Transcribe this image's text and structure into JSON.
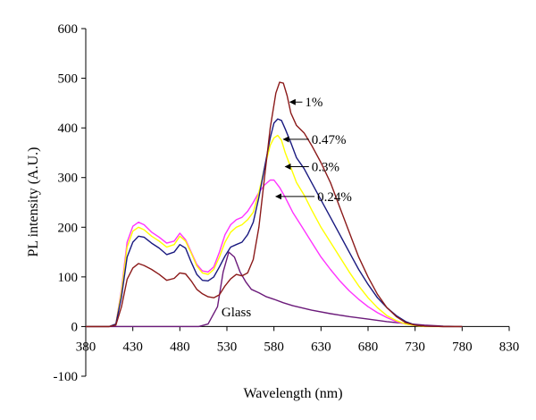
{
  "chart_data": {
    "type": "line",
    "title": "",
    "xlabel": "Wavelength (nm)",
    "ylabel": "PL intensity (A.U.)",
    "xlim": [
      380,
      830
    ],
    "ylim": [
      -100,
      600
    ],
    "xticks": [
      380,
      430,
      480,
      530,
      580,
      630,
      680,
      730,
      780,
      830
    ],
    "yticks": [
      -100,
      0,
      100,
      200,
      300,
      400,
      500,
      600
    ],
    "grid": false,
    "legend": "none",
    "series": [
      {
        "name": "1%",
        "color": "#8B1A1A",
        "x": [
          380,
          405,
          412,
          418,
          424,
          430,
          436,
          442,
          450,
          458,
          466,
          474,
          480,
          486,
          492,
          498,
          504,
          510,
          516,
          522,
          528,
          534,
          540,
          546,
          552,
          558,
          564,
          570,
          576,
          582,
          586,
          590,
          594,
          598,
          604,
          612,
          620,
          630,
          640,
          650,
          660,
          670,
          680,
          690,
          700,
          710,
          720,
          730,
          740,
          760,
          780
        ],
        "values": [
          0,
          0,
          3,
          40,
          95,
          118,
          127,
          123,
          115,
          105,
          93,
          97,
          108,
          106,
          92,
          75,
          66,
          60,
          58,
          64,
          82,
          96,
          105,
          102,
          108,
          135,
          200,
          300,
          400,
          470,
          492,
          490,
          465,
          430,
          405,
          390,
          365,
          330,
          290,
          240,
          190,
          140,
          100,
          65,
          38,
          20,
          8,
          3,
          1,
          0,
          0
        ]
      },
      {
        "name": "0.47%",
        "color": "#1A1A80",
        "x": [
          380,
          405,
          412,
          418,
          424,
          430,
          436,
          442,
          450,
          458,
          466,
          474,
          480,
          486,
          492,
          498,
          504,
          510,
          516,
          522,
          528,
          534,
          540,
          546,
          552,
          558,
          564,
          570,
          576,
          580,
          584,
          588,
          592,
          598,
          604,
          612,
          620,
          630,
          640,
          650,
          660,
          670,
          680,
          690,
          700,
          710,
          720,
          730,
          740,
          760,
          780
        ],
        "values": [
          0,
          0,
          5,
          60,
          140,
          170,
          182,
          180,
          168,
          158,
          145,
          150,
          165,
          158,
          130,
          105,
          93,
          92,
          100,
          120,
          142,
          160,
          165,
          170,
          185,
          210,
          260,
          320,
          380,
          410,
          418,
          415,
          398,
          370,
          340,
          318,
          290,
          255,
          220,
          185,
          150,
          115,
          85,
          58,
          38,
          22,
          10,
          3,
          1,
          0,
          0
        ]
      },
      {
        "name": "0.3%",
        "color": "#FFFF00",
        "x": [
          380,
          405,
          412,
          418,
          424,
          430,
          436,
          442,
          450,
          458,
          466,
          474,
          480,
          486,
          492,
          498,
          504,
          510,
          516,
          522,
          528,
          534,
          540,
          546,
          552,
          558,
          564,
          570,
          576,
          580,
          584,
          588,
          592,
          598,
          604,
          612,
          620,
          630,
          640,
          650,
          660,
          670,
          680,
          690,
          700,
          710,
          720,
          730,
          740,
          760,
          780
        ],
        "values": [
          0,
          0,
          5,
          70,
          160,
          192,
          200,
          195,
          182,
          172,
          160,
          165,
          182,
          172,
          148,
          122,
          108,
          105,
          115,
          140,
          170,
          190,
          200,
          205,
          215,
          230,
          270,
          320,
          365,
          380,
          385,
          375,
          350,
          320,
          290,
          265,
          235,
          200,
          170,
          140,
          110,
          82,
          58,
          38,
          22,
          12,
          5,
          2,
          0,
          0,
          0
        ]
      },
      {
        "name": "0.24%",
        "color": "#FF33FF",
        "x": [
          380,
          405,
          412,
          418,
          424,
          430,
          436,
          442,
          450,
          458,
          466,
          474,
          480,
          486,
          492,
          498,
          504,
          510,
          516,
          522,
          528,
          534,
          540,
          546,
          552,
          558,
          564,
          570,
          576,
          580,
          586,
          592,
          600,
          610,
          620,
          630,
          640,
          650,
          660,
          670,
          680,
          690,
          700,
          710,
          720,
          730,
          740,
          760,
          780
        ],
        "values": [
          0,
          0,
          5,
          75,
          170,
          202,
          210,
          205,
          190,
          180,
          168,
          172,
          188,
          175,
          150,
          125,
          112,
          110,
          120,
          150,
          185,
          205,
          215,
          220,
          232,
          250,
          270,
          285,
          295,
          295,
          280,
          260,
          230,
          200,
          170,
          140,
          115,
          92,
          72,
          55,
          40,
          28,
          18,
          10,
          5,
          2,
          1,
          0,
          0
        ]
      },
      {
        "name": "Glass",
        "color": "#6B1A7A",
        "x": [
          380,
          410,
          420,
          426,
          432,
          440,
          450,
          460,
          470,
          480,
          490,
          500,
          510,
          520,
          526,
          532,
          538,
          544,
          550,
          556,
          564,
          572,
          580,
          590,
          600,
          620,
          640,
          660,
          680,
          700,
          720,
          740,
          760,
          780
        ],
        "values": [
          0,
          0,
          0,
          0,
          0,
          0,
          0,
          0,
          0,
          0,
          0,
          0,
          5,
          40,
          110,
          150,
          140,
          110,
          90,
          75,
          68,
          60,
          55,
          48,
          42,
          33,
          26,
          20,
          15,
          10,
          6,
          3,
          1,
          0
        ]
      }
    ],
    "annotations": [
      {
        "text": "1%",
        "arrow_to": [
          597,
          452
        ],
        "text_at": [
          613,
          452
        ]
      },
      {
        "text": "0.47%",
        "arrow_to": [
          590,
          377
        ],
        "text_at": [
          620,
          377
        ]
      },
      {
        "text": "0.3%",
        "arrow_to": [
          592,
          322
        ],
        "text_at": [
          620,
          322
        ]
      },
      {
        "text": "0.24%",
        "arrow_to": [
          582,
          262
        ],
        "text_at": [
          626,
          262
        ]
      },
      {
        "text": "Glass",
        "at": [
          540,
          30
        ]
      }
    ]
  }
}
